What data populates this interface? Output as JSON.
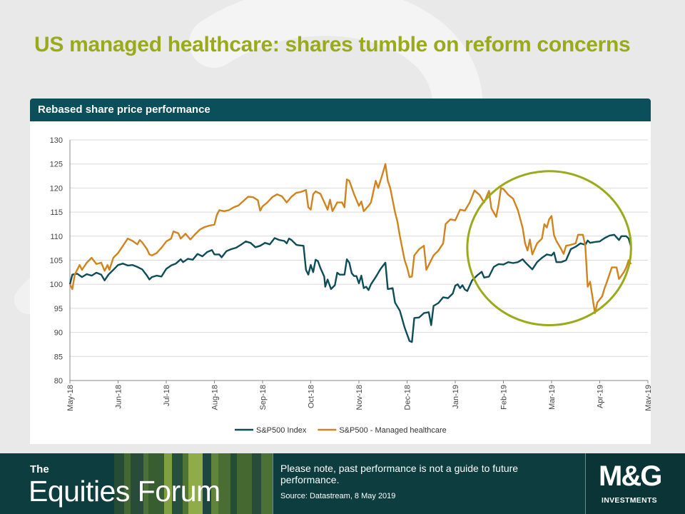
{
  "slide": {
    "title": "US managed healthcare: shares tumble on reform concerns",
    "panel_title": "Rebased  share price performance"
  },
  "chart_data": {
    "type": "line",
    "xlabel": "",
    "ylabel": "",
    "ylim": [
      80,
      130
    ],
    "yticks": [
      80,
      85,
      90,
      95,
      100,
      105,
      110,
      115,
      120,
      125,
      130
    ],
    "x_tick_labels": [
      "May-18",
      "Jun-18",
      "Jul-18",
      "Aug-18",
      "Sep-18",
      "Oct-18",
      "Nov-18",
      "Dec-18",
      "Jan-19",
      "Feb-19",
      "Mar-19",
      "Apr-19",
      "May-19"
    ],
    "x_range_months": [
      0,
      12
    ],
    "grid": "horizontal",
    "legend_position": "bottom",
    "annotation": {
      "type": "ellipse",
      "color": "#9aaa1b",
      "x_center_month": 9.95,
      "y_center": 107.5,
      "x_radius_months": 1.7,
      "y_radius": 16
    },
    "series": [
      {
        "name": "S&P500 Index",
        "color": "#0d4d57",
        "points": [
          [
            0.0,
            100
          ],
          [
            0.05,
            102
          ],
          [
            0.15,
            102.2
          ],
          [
            0.25,
            101.5
          ],
          [
            0.35,
            102.1
          ],
          [
            0.45,
            101.8
          ],
          [
            0.55,
            102.4
          ],
          [
            0.65,
            102.0
          ],
          [
            0.72,
            100.8
          ],
          [
            0.8,
            102.0
          ],
          [
            0.9,
            103.0
          ],
          [
            1.0,
            104.0
          ],
          [
            1.1,
            104.3
          ],
          [
            1.2,
            103.9
          ],
          [
            1.3,
            104.0
          ],
          [
            1.4,
            103.6
          ],
          [
            1.5,
            103.1
          ],
          [
            1.6,
            101.8
          ],
          [
            1.65,
            101.0
          ],
          [
            1.7,
            101.5
          ],
          [
            1.8,
            101.8
          ],
          [
            1.9,
            101.6
          ],
          [
            2.0,
            103.2
          ],
          [
            2.1,
            103.9
          ],
          [
            2.2,
            104.3
          ],
          [
            2.3,
            105.2
          ],
          [
            2.35,
            104.6
          ],
          [
            2.45,
            105.3
          ],
          [
            2.55,
            105.1
          ],
          [
            2.65,
            106.3
          ],
          [
            2.75,
            105.8
          ],
          [
            2.85,
            106.7
          ],
          [
            2.95,
            107.1
          ],
          [
            3.0,
            106.2
          ],
          [
            3.1,
            106.2
          ],
          [
            3.15,
            105.6
          ],
          [
            3.25,
            106.9
          ],
          [
            3.35,
            107.3
          ],
          [
            3.45,
            107.6
          ],
          [
            3.55,
            108.2
          ],
          [
            3.65,
            108.9
          ],
          [
            3.75,
            108.6
          ],
          [
            3.85,
            107.7
          ],
          [
            3.95,
            108.0
          ],
          [
            4.05,
            108.6
          ],
          [
            4.15,
            108.3
          ],
          [
            4.25,
            109.6
          ],
          [
            4.35,
            109.2
          ],
          [
            4.45,
            109.0
          ],
          [
            4.5,
            108.5
          ],
          [
            4.55,
            109.5
          ],
          [
            4.6,
            109.2
          ],
          [
            4.7,
            108.2
          ],
          [
            4.75,
            108.1
          ],
          [
            4.85,
            108.0
          ],
          [
            4.9,
            103.0
          ],
          [
            4.95,
            102.0
          ],
          [
            5.0,
            104.0
          ],
          [
            5.05,
            102.5
          ],
          [
            5.1,
            105.1
          ],
          [
            5.15,
            104.8
          ],
          [
            5.2,
            103.4
          ],
          [
            5.28,
            101.6
          ],
          [
            5.3,
            99.5
          ],
          [
            5.35,
            101.0
          ],
          [
            5.42,
            99.0
          ],
          [
            5.5,
            99.8
          ],
          [
            5.55,
            102.4
          ],
          [
            5.6,
            102.0
          ],
          [
            5.7,
            102.0
          ],
          [
            5.75,
            105.2
          ],
          [
            5.8,
            104.5
          ],
          [
            5.85,
            102.3
          ],
          [
            5.9,
            101.7
          ],
          [
            5.95,
            101.7
          ],
          [
            6.0,
            100.2
          ],
          [
            6.05,
            101.8
          ],
          [
            6.1,
            99.2
          ],
          [
            6.15,
            99.5
          ],
          [
            6.2,
            98.8
          ],
          [
            6.25,
            100.0
          ],
          [
            6.35,
            101.5
          ],
          [
            6.45,
            103.2
          ],
          [
            6.55,
            104.5
          ],
          [
            6.6,
            99.0
          ],
          [
            6.65,
            99.1
          ],
          [
            6.7,
            99.2
          ],
          [
            6.75,
            96.2
          ],
          [
            6.85,
            94.5
          ],
          [
            6.95,
            91.0
          ],
          [
            7.05,
            88.2
          ],
          [
            7.1,
            88.0
          ],
          [
            7.15,
            93.0
          ],
          [
            7.25,
            93.1
          ],
          [
            7.35,
            94.0
          ],
          [
            7.45,
            94.2
          ],
          [
            7.5,
            91.5
          ],
          [
            7.55,
            95.5
          ],
          [
            7.65,
            96.1
          ],
          [
            7.75,
            97.3
          ],
          [
            7.85,
            97.1
          ],
          [
            7.95,
            98.1
          ],
          [
            8.0,
            99.7
          ],
          [
            8.05,
            100.0
          ],
          [
            8.1,
            99.2
          ],
          [
            8.15,
            99.8
          ],
          [
            8.2,
            98.9
          ],
          [
            8.25,
            98.6
          ],
          [
            8.35,
            100.8
          ],
          [
            8.45,
            101.8
          ],
          [
            8.55,
            102.6
          ],
          [
            8.6,
            101.4
          ],
          [
            8.7,
            101.6
          ],
          [
            8.8,
            103.6
          ],
          [
            8.9,
            104.2
          ],
          [
            9.0,
            104.1
          ],
          [
            9.1,
            104.6
          ],
          [
            9.2,
            104.4
          ],
          [
            9.3,
            104.6
          ],
          [
            9.4,
            105.2
          ],
          [
            9.45,
            104.6
          ],
          [
            9.5,
            104.1
          ],
          [
            9.6,
            103.1
          ],
          [
            9.7,
            104.6
          ],
          [
            9.8,
            105.5
          ],
          [
            9.9,
            106.2
          ],
          [
            10.0,
            106.0
          ],
          [
            10.05,
            106.6
          ],
          [
            10.1,
            104.6
          ],
          [
            10.2,
            104.6
          ],
          [
            10.3,
            105.0
          ],
          [
            10.4,
            107.3
          ],
          [
            10.5,
            107.8
          ],
          [
            10.6,
            108.5
          ],
          [
            10.7,
            108.2
          ],
          [
            10.75,
            109.1
          ],
          [
            10.8,
            108.6
          ],
          [
            10.9,
            108.8
          ],
          [
            11.0,
            108.9
          ],
          [
            11.1,
            109.6
          ],
          [
            11.2,
            110.1
          ],
          [
            11.3,
            110.3
          ],
          [
            11.4,
            109.2
          ],
          [
            11.45,
            110.0
          ],
          [
            11.55,
            110.0
          ],
          [
            11.6,
            109.5
          ],
          [
            11.65,
            107.8
          ]
        ]
      },
      {
        "name": "S&P500 - Managed healthcare",
        "color": "#d1831e",
        "points": [
          [
            0.0,
            100
          ],
          [
            0.05,
            99.0
          ],
          [
            0.1,
            102.0
          ],
          [
            0.2,
            104.0
          ],
          [
            0.25,
            103.0
          ],
          [
            0.35,
            104.5
          ],
          [
            0.45,
            105.5
          ],
          [
            0.55,
            104.2
          ],
          [
            0.65,
            104.5
          ],
          [
            0.72,
            102.8
          ],
          [
            0.78,
            104.0
          ],
          [
            0.82,
            103.0
          ],
          [
            0.9,
            105.5
          ],
          [
            1.0,
            106.5
          ],
          [
            1.1,
            108.0
          ],
          [
            1.2,
            109.5
          ],
          [
            1.3,
            109.0
          ],
          [
            1.4,
            108.3
          ],
          [
            1.45,
            109.2
          ],
          [
            1.5,
            108.7
          ],
          [
            1.6,
            107.3
          ],
          [
            1.65,
            106.2
          ],
          [
            1.7,
            106.0
          ],
          [
            1.8,
            106.5
          ],
          [
            1.9,
            107.6
          ],
          [
            2.0,
            108.9
          ],
          [
            2.1,
            109.5
          ],
          [
            2.15,
            111.0
          ],
          [
            2.25,
            110.6
          ],
          [
            2.3,
            109.5
          ],
          [
            2.4,
            110.5
          ],
          [
            2.5,
            109.3
          ],
          [
            2.6,
            110.4
          ],
          [
            2.7,
            111.4
          ],
          [
            2.8,
            111.9
          ],
          [
            2.9,
            112.2
          ],
          [
            3.0,
            112.4
          ],
          [
            3.05,
            114.4
          ],
          [
            3.1,
            115.4
          ],
          [
            3.2,
            115.2
          ],
          [
            3.3,
            115.4
          ],
          [
            3.4,
            116.0
          ],
          [
            3.5,
            116.4
          ],
          [
            3.6,
            117.3
          ],
          [
            3.7,
            118.2
          ],
          [
            3.8,
            118.1
          ],
          [
            3.9,
            117.5
          ],
          [
            3.95,
            115.3
          ],
          [
            4.0,
            116.2
          ],
          [
            4.1,
            117.0
          ],
          [
            4.2,
            118.1
          ],
          [
            4.3,
            118.7
          ],
          [
            4.4,
            118.3
          ],
          [
            4.5,
            117.0
          ],
          [
            4.6,
            118.2
          ],
          [
            4.7,
            119.0
          ],
          [
            4.8,
            119.2
          ],
          [
            4.9,
            119.6
          ],
          [
            4.95,
            116.0
          ],
          [
            5.0,
            115.5
          ],
          [
            5.05,
            118.7
          ],
          [
            5.1,
            119.3
          ],
          [
            5.2,
            118.8
          ],
          [
            5.3,
            116.6
          ],
          [
            5.35,
            115.5
          ],
          [
            5.4,
            117.6
          ],
          [
            5.45,
            115.2
          ],
          [
            5.55,
            117.0
          ],
          [
            5.65,
            117.0
          ],
          [
            5.7,
            116.0
          ],
          [
            5.75,
            121.8
          ],
          [
            5.8,
            121.5
          ],
          [
            5.9,
            118.7
          ],
          [
            6.0,
            116.3
          ],
          [
            6.05,
            117.2
          ],
          [
            6.1,
            115.2
          ],
          [
            6.2,
            116.3
          ],
          [
            6.25,
            117.0
          ],
          [
            6.35,
            121.5
          ],
          [
            6.4,
            120.0
          ],
          [
            6.5,
            123.2
          ],
          [
            6.55,
            125.0
          ],
          [
            6.6,
            121.5
          ],
          [
            6.65,
            120.0
          ],
          [
            6.75,
            115.0
          ],
          [
            6.8,
            113.0
          ],
          [
            6.85,
            110.0
          ],
          [
            6.95,
            105.0
          ],
          [
            7.0,
            103.5
          ],
          [
            7.05,
            101.5
          ],
          [
            7.1,
            101.6
          ],
          [
            7.15,
            106.0
          ],
          [
            7.25,
            107.3
          ],
          [
            7.35,
            108.0
          ],
          [
            7.4,
            103.0
          ],
          [
            7.45,
            104.0
          ],
          [
            7.55,
            106.0
          ],
          [
            7.65,
            107.0
          ],
          [
            7.75,
            108.5
          ],
          [
            7.8,
            112.5
          ],
          [
            7.9,
            113.5
          ],
          [
            8.0,
            113.3
          ],
          [
            8.1,
            115.5
          ],
          [
            8.2,
            115.3
          ],
          [
            8.3,
            117.0
          ],
          [
            8.4,
            119.5
          ],
          [
            8.5,
            118.6
          ],
          [
            8.6,
            117.0
          ],
          [
            8.7,
            119.4
          ],
          [
            8.75,
            115.8
          ],
          [
            8.85,
            114.0
          ],
          [
            8.9,
            116.6
          ],
          [
            8.95,
            120.0
          ],
          [
            9.0,
            119.8
          ],
          [
            9.1,
            118.6
          ],
          [
            9.2,
            117.8
          ],
          [
            9.3,
            115.4
          ],
          [
            9.4,
            111.7
          ],
          [
            9.45,
            108.5
          ],
          [
            9.5,
            107.0
          ],
          [
            9.55,
            109.3
          ],
          [
            9.6,
            106.2
          ],
          [
            9.7,
            108.5
          ],
          [
            9.8,
            109.5
          ],
          [
            9.85,
            112.5
          ],
          [
            9.9,
            111.8
          ],
          [
            9.95,
            113.5
          ],
          [
            10.0,
            114.2
          ],
          [
            10.05,
            110.2
          ],
          [
            10.1,
            109.0
          ],
          [
            10.2,
            107.3
          ],
          [
            10.25,
            106.3
          ],
          [
            10.3,
            108.0
          ],
          [
            10.4,
            108.2
          ],
          [
            10.5,
            108.5
          ],
          [
            10.55,
            110.3
          ],
          [
            10.65,
            110.3
          ],
          [
            10.7,
            108.0
          ],
          [
            10.75,
            99.5
          ],
          [
            10.8,
            100.5
          ],
          [
            10.9,
            94.0
          ],
          [
            10.95,
            96.2
          ],
          [
            11.05,
            97.5
          ],
          [
            11.1,
            99.2
          ],
          [
            11.15,
            100.5
          ],
          [
            11.25,
            103.5
          ],
          [
            11.35,
            103.5
          ],
          [
            11.4,
            101.1
          ],
          [
            11.5,
            102.5
          ],
          [
            11.55,
            103.5
          ],
          [
            11.6,
            105.0
          ],
          [
            11.65,
            104.2
          ]
        ]
      }
    ]
  },
  "footer": {
    "brand_small": "The",
    "brand_big": "Equities Forum",
    "disclaimer": "Please note, past performance is not a guide to future performance.",
    "source": "Source: Datastream, 8 May 2019",
    "logo_main": "M&G",
    "logo_sub": "INVESTMENTS"
  }
}
